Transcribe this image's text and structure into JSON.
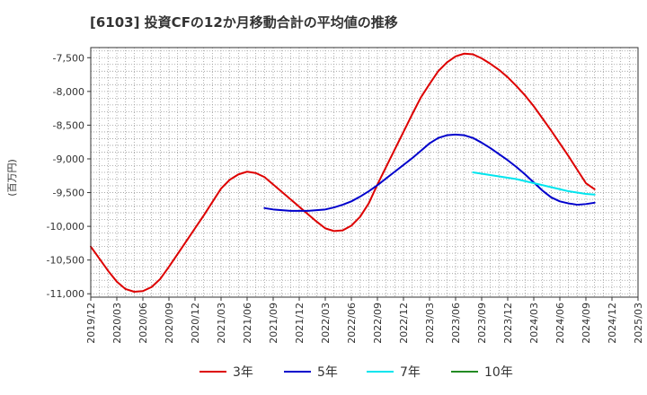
{
  "chart_data": {
    "type": "line",
    "title": "[6103]  投資CFの12か月移動合計の平均値の推移",
    "ylabel": "(百万円)",
    "xlabel": "",
    "ylim": [
      -11050,
      -7350
    ],
    "yticks": [
      -7500,
      -8000,
      -8500,
      -9000,
      -9500,
      -10000,
      -10500,
      -11000
    ],
    "ytick_labels": [
      "-7,500",
      "-8,000",
      "-8,500",
      "-9,000",
      "-9,500",
      "-10,000",
      "-10,500",
      "-11,000"
    ],
    "x_start": "2019-12",
    "x_end": "2025-03",
    "xtick_labels": [
      "2019/12",
      "2020/03",
      "2020/06",
      "2020/09",
      "2020/12",
      "2021/03",
      "2021/06",
      "2021/09",
      "2021/12",
      "2022/03",
      "2022/06",
      "2022/09",
      "2022/12",
      "2023/03",
      "2023/06",
      "2023/09",
      "2023/12",
      "2024/03",
      "2024/06",
      "2024/09",
      "2024/12",
      "2025/03"
    ],
    "grid": true,
    "legend_position": "bottom",
    "series": [
      {
        "name": "3年",
        "color": "#dd0000",
        "points": [
          [
            "2019-12",
            -10300
          ],
          [
            "2020-01",
            -10480
          ],
          [
            "2020-02",
            -10660
          ],
          [
            "2020-03",
            -10820
          ],
          [
            "2020-04",
            -10930
          ],
          [
            "2020-05",
            -10970
          ],
          [
            "2020-06",
            -10960
          ],
          [
            "2020-07",
            -10900
          ],
          [
            "2020-08",
            -10780
          ],
          [
            "2020-09",
            -10600
          ],
          [
            "2020-10",
            -10410
          ],
          [
            "2020-11",
            -10220
          ],
          [
            "2020-12",
            -10030
          ],
          [
            "2021-01",
            -9840
          ],
          [
            "2021-02",
            -9640
          ],
          [
            "2021-03",
            -9440
          ],
          [
            "2021-04",
            -9310
          ],
          [
            "2021-05",
            -9230
          ],
          [
            "2021-06",
            -9190
          ],
          [
            "2021-07",
            -9210
          ],
          [
            "2021-08",
            -9270
          ],
          [
            "2021-09",
            -9380
          ],
          [
            "2021-10",
            -9490
          ],
          [
            "2021-11",
            -9600
          ],
          [
            "2021-12",
            -9710
          ],
          [
            "2022-01",
            -9820
          ],
          [
            "2022-02",
            -9930
          ],
          [
            "2022-03",
            -10030
          ],
          [
            "2022-04",
            -10070
          ],
          [
            "2022-05",
            -10060
          ],
          [
            "2022-06",
            -9990
          ],
          [
            "2022-07",
            -9860
          ],
          [
            "2022-08",
            -9660
          ],
          [
            "2022-09",
            -9380
          ],
          [
            "2022-10",
            -9120
          ],
          [
            "2022-11",
            -8860
          ],
          [
            "2022-12",
            -8600
          ],
          [
            "2023-01",
            -8340
          ],
          [
            "2023-02",
            -8090
          ],
          [
            "2023-03",
            -7890
          ],
          [
            "2023-04",
            -7700
          ],
          [
            "2023-05",
            -7570
          ],
          [
            "2023-06",
            -7480
          ],
          [
            "2023-07",
            -7440
          ],
          [
            "2023-08",
            -7450
          ],
          [
            "2023-09",
            -7510
          ],
          [
            "2023-10",
            -7590
          ],
          [
            "2023-11",
            -7680
          ],
          [
            "2023-12",
            -7790
          ],
          [
            "2024-01",
            -7920
          ],
          [
            "2024-02",
            -8060
          ],
          [
            "2024-03",
            -8220
          ],
          [
            "2024-04",
            -8400
          ],
          [
            "2024-05",
            -8580
          ],
          [
            "2024-06",
            -8770
          ],
          [
            "2024-07",
            -8960
          ],
          [
            "2024-08",
            -9160
          ],
          [
            "2024-09",
            -9360
          ],
          [
            "2024-10",
            -9450
          ]
        ]
      },
      {
        "name": "5年",
        "color": "#0000cc",
        "points": [
          [
            "2021-08",
            -9730
          ],
          [
            "2021-09",
            -9750
          ],
          [
            "2021-10",
            -9760
          ],
          [
            "2021-11",
            -9770
          ],
          [
            "2021-12",
            -9770
          ],
          [
            "2022-01",
            -9770
          ],
          [
            "2022-02",
            -9760
          ],
          [
            "2022-03",
            -9750
          ],
          [
            "2022-04",
            -9720
          ],
          [
            "2022-05",
            -9680
          ],
          [
            "2022-06",
            -9630
          ],
          [
            "2022-07",
            -9560
          ],
          [
            "2022-08",
            -9480
          ],
          [
            "2022-09",
            -9390
          ],
          [
            "2022-10",
            -9290
          ],
          [
            "2022-11",
            -9190
          ],
          [
            "2022-12",
            -9090
          ],
          [
            "2023-01",
            -8990
          ],
          [
            "2023-02",
            -8880
          ],
          [
            "2023-03",
            -8770
          ],
          [
            "2023-04",
            -8690
          ],
          [
            "2023-05",
            -8650
          ],
          [
            "2023-06",
            -8640
          ],
          [
            "2023-07",
            -8650
          ],
          [
            "2023-08",
            -8690
          ],
          [
            "2023-09",
            -8760
          ],
          [
            "2023-10",
            -8840
          ],
          [
            "2023-11",
            -8930
          ],
          [
            "2023-12",
            -9020
          ],
          [
            "2024-01",
            -9120
          ],
          [
            "2024-02",
            -9230
          ],
          [
            "2024-03",
            -9350
          ],
          [
            "2024-04",
            -9470
          ],
          [
            "2024-05",
            -9570
          ],
          [
            "2024-06",
            -9630
          ],
          [
            "2024-07",
            -9660
          ],
          [
            "2024-08",
            -9680
          ],
          [
            "2024-09",
            -9670
          ],
          [
            "2024-10",
            -9650
          ]
        ]
      },
      {
        "name": "7年",
        "color": "#00e5ee",
        "points": [
          [
            "2023-08",
            -9200
          ],
          [
            "2023-09",
            -9220
          ],
          [
            "2023-10",
            -9240
          ],
          [
            "2023-11",
            -9260
          ],
          [
            "2023-12",
            -9280
          ],
          [
            "2024-01",
            -9300
          ],
          [
            "2024-02",
            -9330
          ],
          [
            "2024-03",
            -9360
          ],
          [
            "2024-04",
            -9390
          ],
          [
            "2024-05",
            -9420
          ],
          [
            "2024-06",
            -9450
          ],
          [
            "2024-07",
            -9480
          ],
          [
            "2024-08",
            -9500
          ],
          [
            "2024-09",
            -9520
          ],
          [
            "2024-10",
            -9530
          ]
        ]
      },
      {
        "name": "10年",
        "color": "#228b22",
        "points": []
      }
    ]
  }
}
